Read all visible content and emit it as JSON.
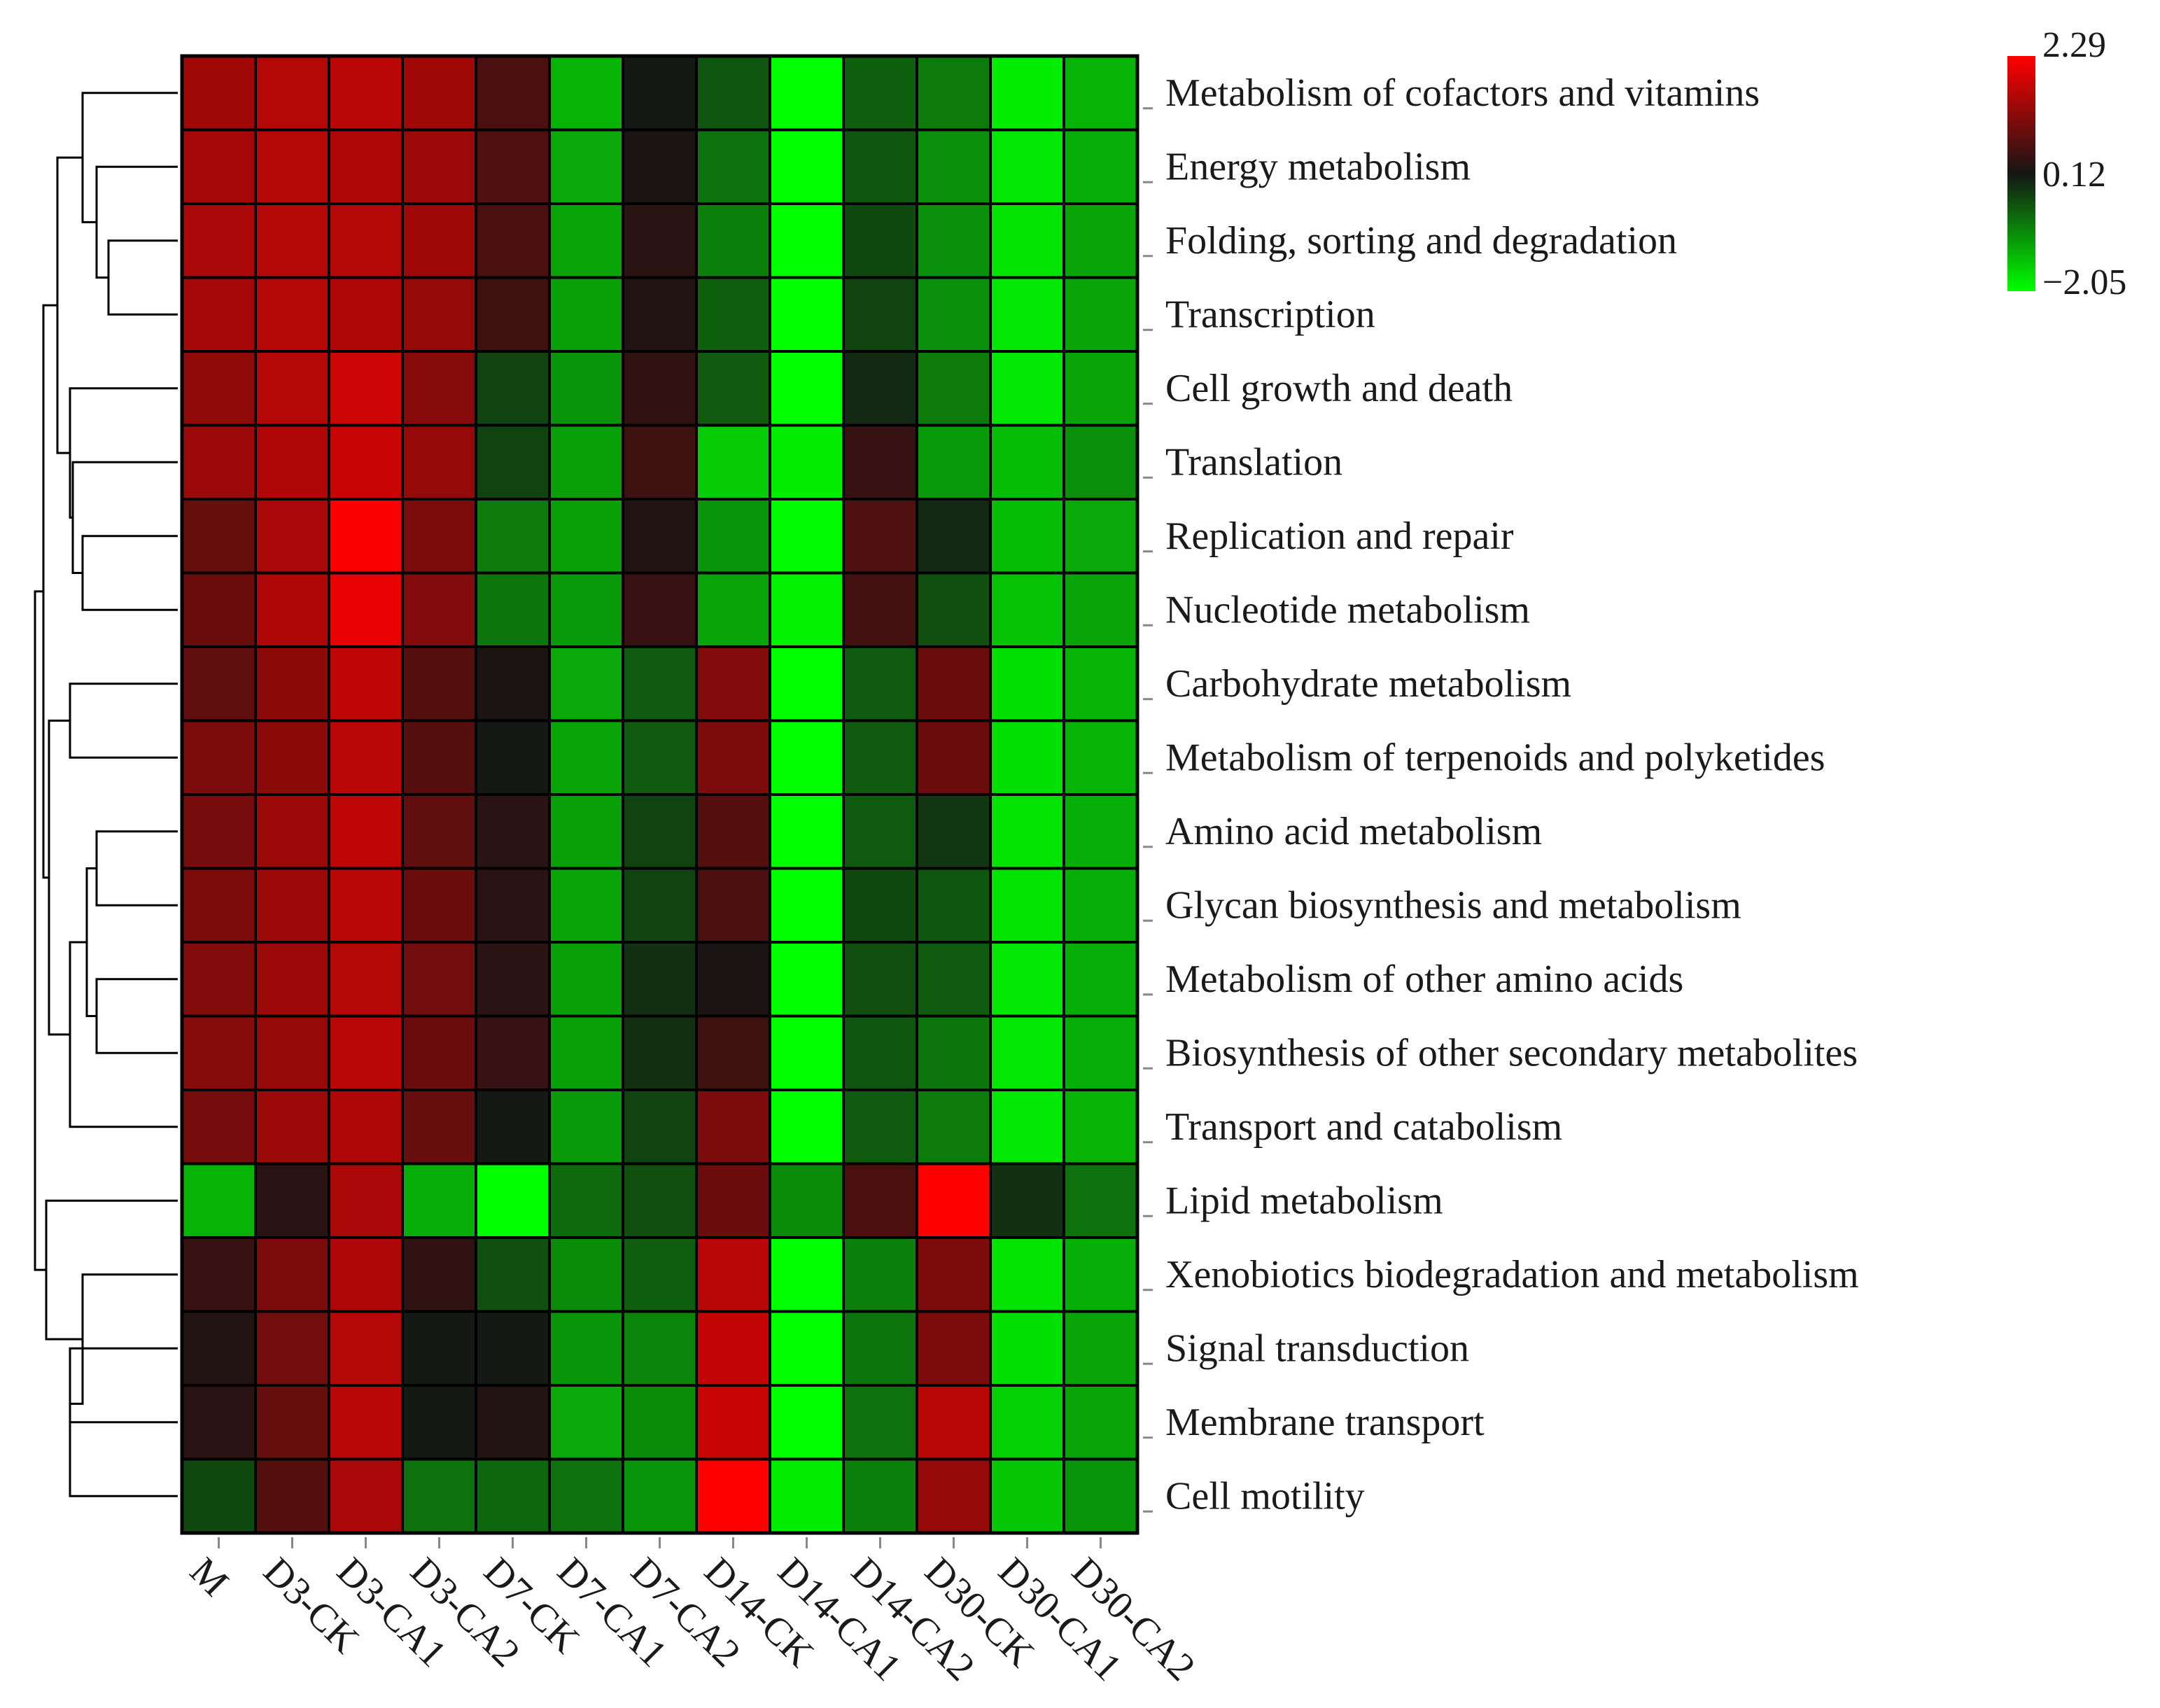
{
  "chart_data": {
    "type": "heatmap",
    "columns": [
      "M",
      "D3-CK",
      "D3-CA1",
      "D3-CA2",
      "D7-CK",
      "D7-CA1",
      "D7-CA2",
      "D14-CK",
      "D14-CA1",
      "D14-CA2",
      "D30-CK",
      "D30-CA1",
      "D30-CA2"
    ],
    "rows": [
      "Metabolism of cofactors and vitamins",
      "Energy metabolism",
      "Folding, sorting and degradation",
      "Transcription",
      "Cell growth and death",
      "Translation",
      "Replication and repair",
      "Nucleotide metabolism",
      "Carbohydrate metabolism",
      "Metabolism of terpenoids and polyketides",
      "Amino acid metabolism",
      "Glycan biosynthesis and metabolism",
      "Metabolism of other amino acids",
      "Biosynthesis of other secondary metabolites",
      "Transport and catabolism",
      "Lipid metabolism",
      "Xenobiotics biodegradation and metabolism",
      "Signal transduction",
      "Membrane transport",
      "Cell motility"
    ],
    "values": [
      [
        1.3,
        1.5,
        1.55,
        1.3,
        0.5,
        -1.25,
        0.1,
        -0.35,
        -2.05,
        -0.45,
        -0.7,
        -1.85,
        -1.25
      ],
      [
        1.35,
        1.5,
        1.45,
        1.25,
        0.55,
        -1.15,
        0.15,
        -0.6,
        -2.05,
        -0.35,
        -0.9,
        -1.8,
        -1.2
      ],
      [
        1.4,
        1.5,
        1.5,
        1.3,
        0.5,
        -1.1,
        0.25,
        -0.75,
        -2.05,
        -0.25,
        -0.9,
        -1.75,
        -1.1
      ],
      [
        1.35,
        1.5,
        1.45,
        1.2,
        0.4,
        -1.05,
        0.2,
        -0.45,
        -2.05,
        -0.2,
        -0.9,
        -1.8,
        -1.1
      ],
      [
        1.15,
        1.5,
        1.75,
        1.05,
        -0.2,
        -0.95,
        0.3,
        -0.4,
        -2.05,
        0.0,
        -0.7,
        -1.8,
        -1.1
      ],
      [
        1.25,
        1.45,
        1.7,
        1.2,
        -0.2,
        -1.05,
        0.4,
        -1.5,
        -1.85,
        0.35,
        -1.0,
        -1.35,
        -0.9
      ],
      [
        0.75,
        1.4,
        2.25,
        0.95,
        -0.7,
        -1.05,
        0.2,
        -0.95,
        -2.0,
        0.55,
        0.0,
        -1.35,
        -1.15
      ],
      [
        0.8,
        1.45,
        2.05,
        1.0,
        -0.65,
        -1.0,
        0.35,
        -1.1,
        -1.9,
        0.45,
        -0.3,
        -1.4,
        -1.1
      ],
      [
        0.7,
        1.1,
        1.6,
        0.6,
        0.15,
        -1.15,
        -0.4,
        1.0,
        -2.05,
        -0.4,
        0.8,
        -1.7,
        -1.25
      ],
      [
        0.95,
        1.1,
        1.55,
        0.6,
        0.1,
        -1.1,
        -0.4,
        0.95,
        -2.05,
        -0.4,
        0.8,
        -1.7,
        -1.25
      ],
      [
        0.9,
        1.25,
        1.6,
        0.7,
        0.25,
        -1.05,
        -0.2,
        0.6,
        -2.05,
        -0.4,
        -0.1,
        -1.75,
        -1.2
      ],
      [
        0.95,
        1.25,
        1.55,
        0.8,
        0.25,
        -1.1,
        -0.2,
        0.5,
        -2.05,
        -0.25,
        -0.35,
        -1.75,
        -1.2
      ],
      [
        1.0,
        1.25,
        1.5,
        0.85,
        0.25,
        -1.05,
        -0.05,
        0.15,
        -2.05,
        -0.3,
        -0.4,
        -1.8,
        -1.2
      ],
      [
        1.05,
        1.2,
        1.55,
        0.8,
        0.35,
        -1.05,
        -0.05,
        0.4,
        -2.05,
        -0.35,
        -0.65,
        -1.8,
        -1.2
      ],
      [
        0.9,
        1.25,
        1.45,
        0.75,
        0.1,
        -1.0,
        -0.2,
        0.95,
        -2.05,
        -0.4,
        -0.7,
        -1.8,
        -1.25
      ],
      [
        -1.25,
        0.25,
        1.4,
        -1.2,
        -2.05,
        -0.55,
        -0.3,
        0.8,
        -0.85,
        0.5,
        2.29,
        -0.05,
        -0.6
      ],
      [
        0.35,
        0.95,
        1.45,
        0.3,
        -0.3,
        -0.85,
        -0.45,
        1.55,
        -2.05,
        -0.75,
        0.95,
        -1.75,
        -1.2
      ],
      [
        0.2,
        0.85,
        1.5,
        0.1,
        0.1,
        -0.95,
        -0.8,
        1.65,
        -2.05,
        -0.65,
        0.95,
        -1.7,
        -1.1
      ],
      [
        0.25,
        0.75,
        1.55,
        0.1,
        0.2,
        -1.15,
        -0.85,
        1.7,
        -2.05,
        -0.6,
        1.55,
        -1.55,
        -1.1
      ],
      [
        -0.25,
        0.6,
        1.4,
        -0.6,
        -0.5,
        -0.6,
        -0.95,
        2.29,
        -1.85,
        -0.75,
        1.2,
        -1.45,
        -0.95
      ]
    ],
    "scale": {
      "min": -2.05,
      "mid": 0.12,
      "max": 2.29,
      "tick_labels": [
        "2.29",
        "0.12",
        "−2.05"
      ],
      "low_color": "#00ff00",
      "mid_color": "#151515",
      "high_color": "#ff0000"
    },
    "row_dendrogram": true,
    "legend_position": "top-right",
    "title": "",
    "xlabel": "",
    "ylabel": ""
  }
}
